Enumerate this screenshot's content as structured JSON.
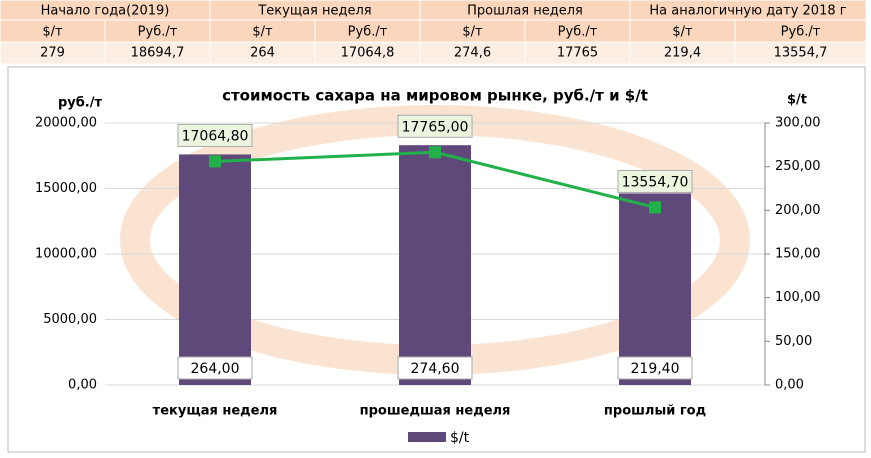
{
  "table": {
    "header": [
      "Начало года(2019)",
      "Текущая неделя",
      "Прошлая неделя",
      "На аналогичную дату 2018 г"
    ],
    "subheader": [
      "$/т",
      "Руб./т",
      "$/т",
      "Руб./т",
      "$/т",
      "Руб./т",
      "$/т",
      "Руб./т"
    ],
    "row": [
      "279",
      "18694,7",
      "264",
      "17064,8",
      "274,6",
      "17765",
      "219,4",
      "13554,7"
    ]
  },
  "chart_data": {
    "type": "bar",
    "title": "стоимость сахара на мировом рынке, руб./т и $/t",
    "y_label": "руб./т",
    "y2_label": "$/t",
    "categories": [
      "текущая  неделя",
      "прошедшая неделя",
      "прошлый год"
    ],
    "series": [
      {
        "name": "$/t",
        "type": "bar",
        "axis": "y2",
        "color": "#5f497a",
        "values": [
          264,
          274.6,
          219.4
        ],
        "value_labels": [
          "264,00",
          "274,60",
          "219,40"
        ]
      },
      {
        "type": "line",
        "color": "#22b04a",
        "values": [
          17064.8,
          17765,
          13554.7
        ],
        "value_labels": [
          "17064,80",
          "17765,00",
          "13554,70"
        ]
      }
    ],
    "ylim": [
      0,
      20000
    ],
    "yticks": [
      {
        "value": 0,
        "label": "0,00"
      },
      {
        "value": 5000,
        "label": "5000,00"
      },
      {
        "value": 10000,
        "label": "10000,00"
      },
      {
        "value": 15000,
        "label": "15000,00"
      },
      {
        "value": 20000,
        "label": "20000,00"
      }
    ],
    "y2lim": [
      0,
      300
    ],
    "y2ticks": [
      {
        "value": 0,
        "label": "0,00"
      },
      {
        "value": 50,
        "label": "50,00"
      },
      {
        "value": 100,
        "label": "100,00"
      },
      {
        "value": 150,
        "label": "150,00"
      },
      {
        "value": 200,
        "label": "200,00"
      },
      {
        "value": 250,
        "label": "250,00"
      },
      {
        "value": 300,
        "label": "300,00"
      }
    ],
    "grid": true,
    "legend": "bottom"
  }
}
